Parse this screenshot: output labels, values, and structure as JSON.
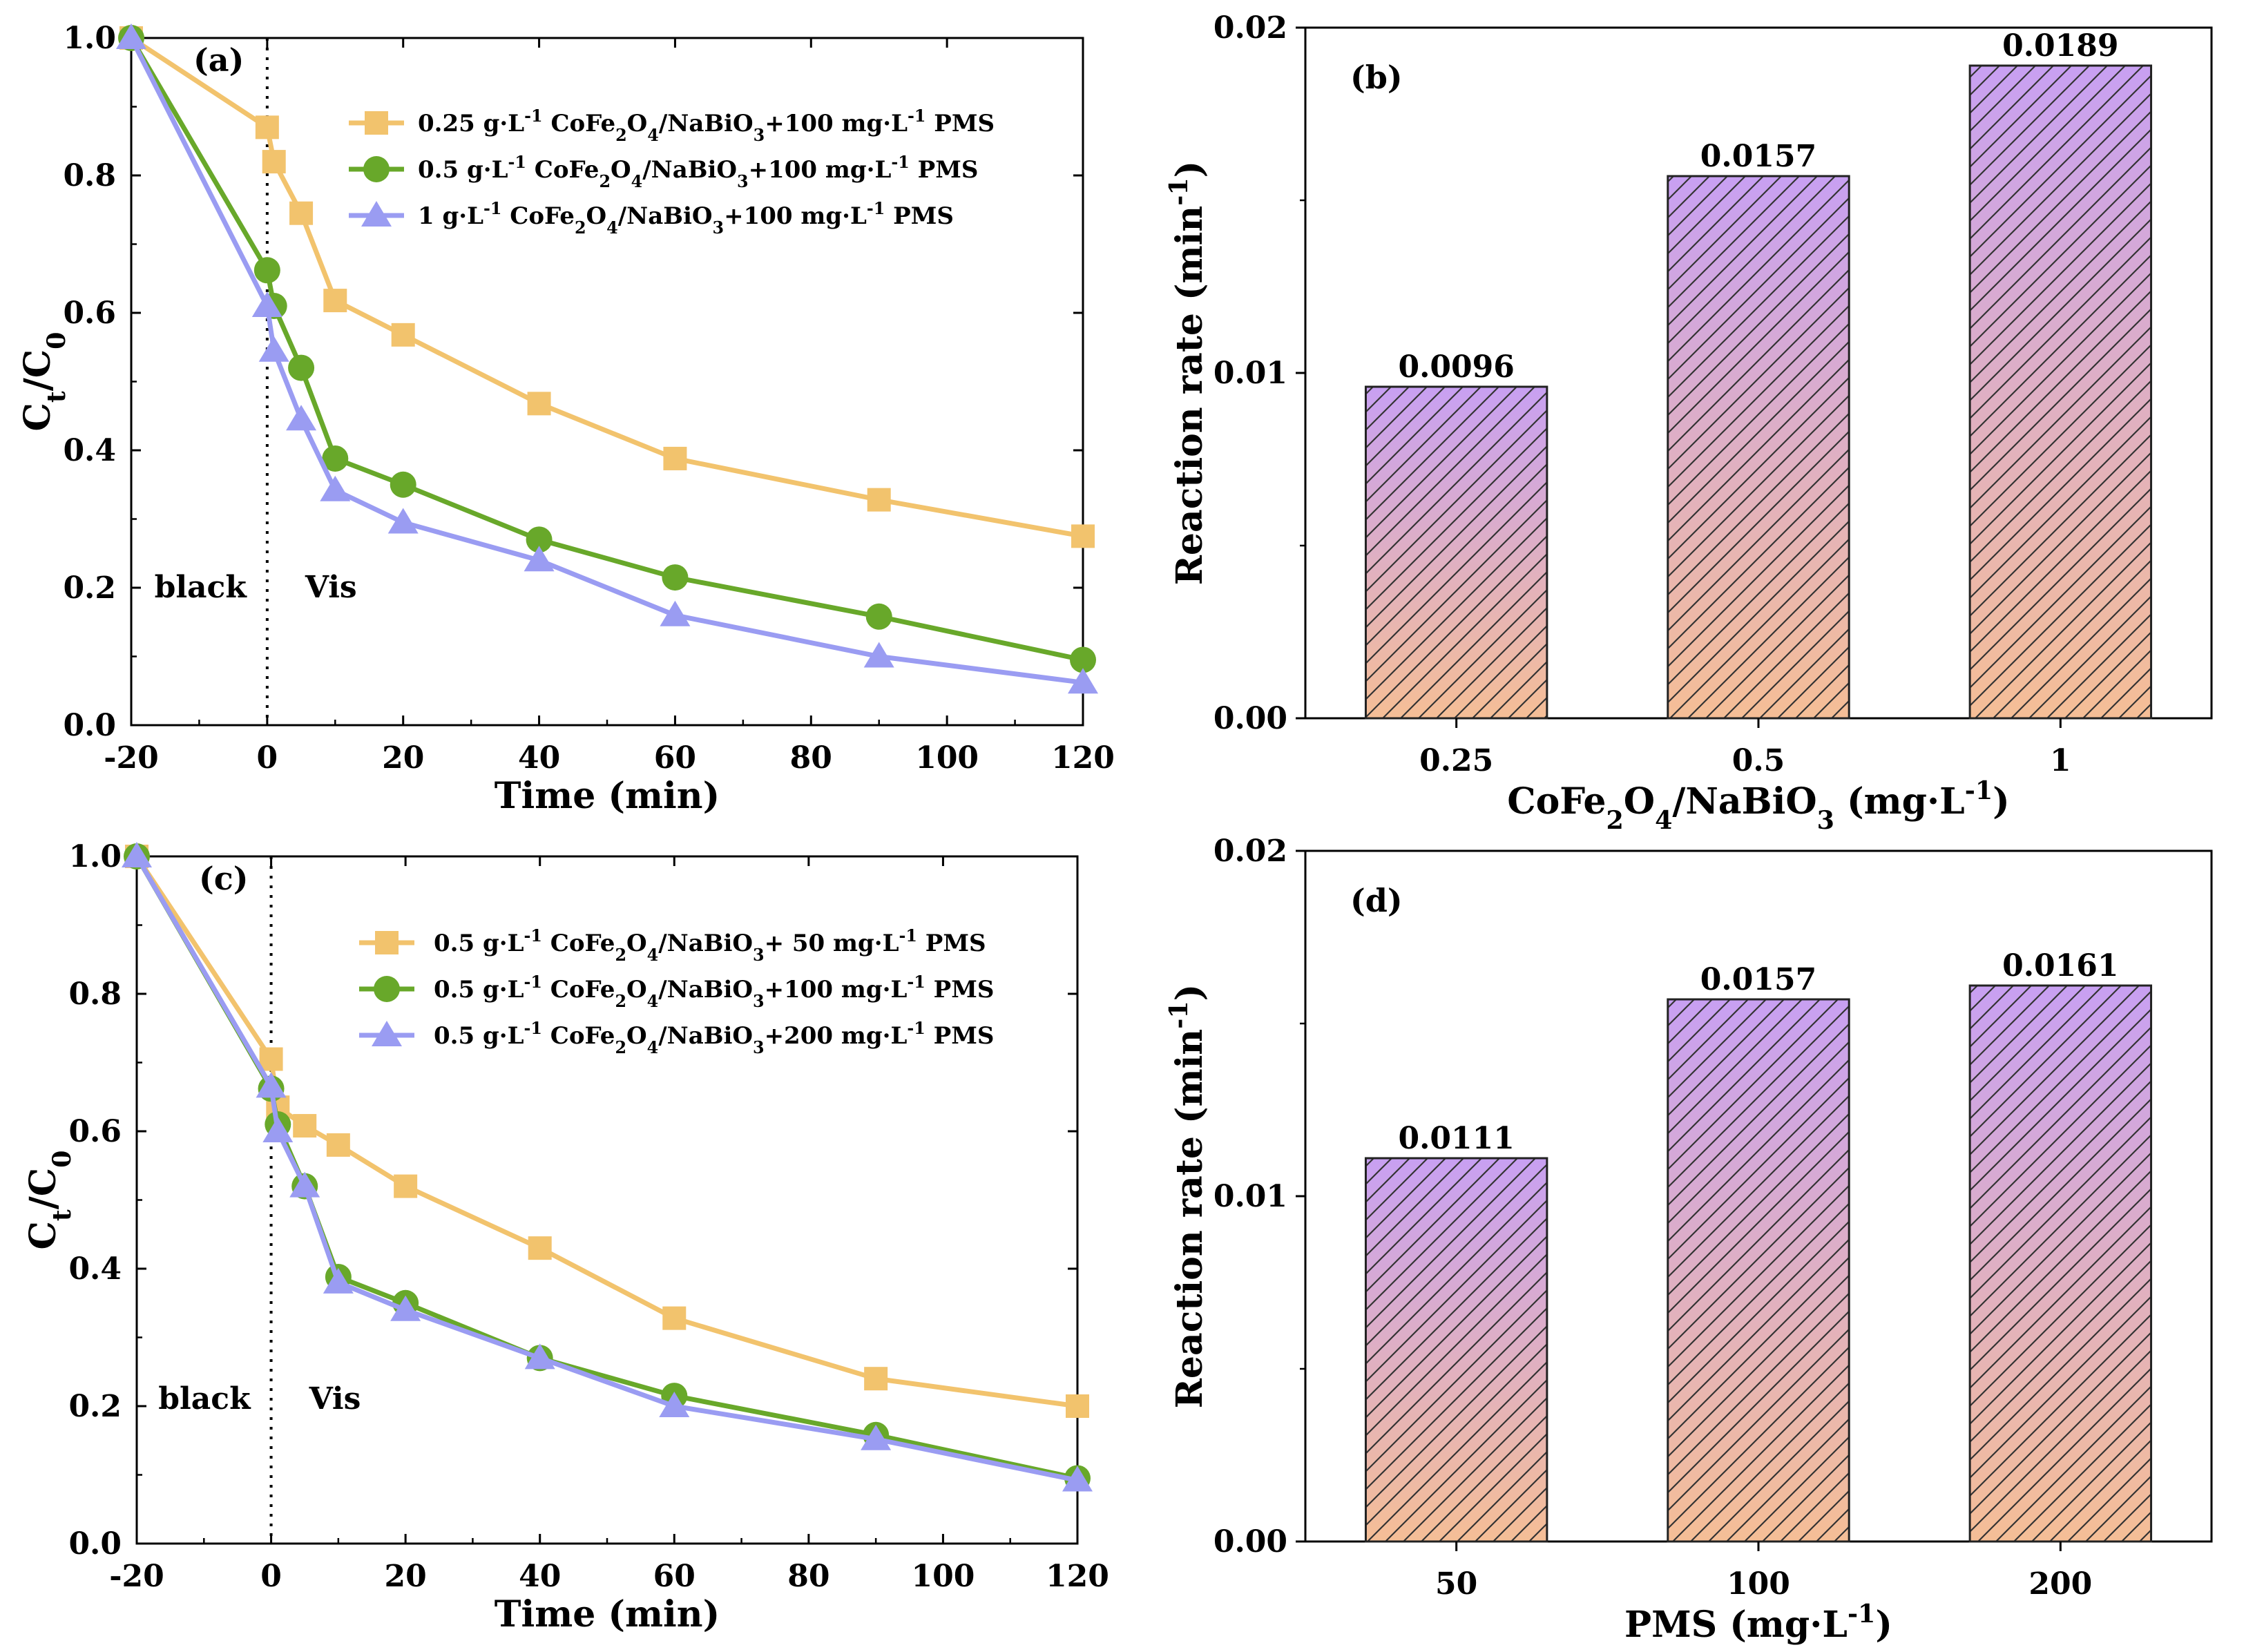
{
  "colors": {
    "series_1": "#F2C36D",
    "series_2": "#68A82A",
    "series_3": "#9A9CF2",
    "bar_top": "#C8A0F2",
    "bar_bottom": "#F5BE96",
    "bar_edge": "#222222"
  },
  "chart_data": [
    {
      "id": "a",
      "type": "line",
      "panel_label": "(a)",
      "xlabel": "Time (min)",
      "ylabel_main": "C",
      "ylabel_sub1": "t",
      "ylabel_mid": "/C",
      "ylabel_sub2": "0",
      "xlim": [
        -20,
        120
      ],
      "ylim": [
        0.0,
        1.0
      ],
      "xticks": [
        "-20",
        "0",
        "20",
        "40",
        "60",
        "80",
        "100",
        "120"
      ],
      "xtick_values": [
        -20,
        0,
        20,
        40,
        60,
        80,
        100,
        120
      ],
      "yticks": [
        "0.0",
        "0.2",
        "0.4",
        "0.6",
        "0.8",
        "1.0"
      ],
      "ytick_values": [
        0.0,
        0.2,
        0.4,
        0.6,
        0.8,
        1.0
      ],
      "divider_x": 0,
      "region_labels": [
        "black",
        "Vis"
      ],
      "legend_position": "top-right",
      "x": [
        -20,
        0,
        1,
        5,
        10,
        20,
        40,
        60,
        90,
        120
      ],
      "series": [
        {
          "name": "0.25 g·L⁻¹ CoFe₂O₄/NaBiO₃+100 mg·L⁻¹ PMS",
          "marker": "square",
          "color_key": "series_1",
          "values": [
            1.0,
            0.87,
            0.82,
            0.745,
            0.618,
            0.568,
            0.468,
            0.388,
            0.328,
            0.275
          ]
        },
        {
          "name": "0.5 g·L⁻¹ CoFe₂O₄/NaBiO₃+100 mg·L⁻¹ PMS",
          "marker": "circle",
          "color_key": "series_2",
          "values": [
            1.0,
            0.662,
            0.61,
            0.52,
            0.388,
            0.35,
            0.27,
            0.215,
            0.158,
            0.095
          ]
        },
        {
          "name": "1 g·L⁻¹ CoFe₂O₄/NaBiO₃+100 mg·L⁻¹ PMS",
          "marker": "triangle",
          "color_key": "series_3",
          "values": [
            1.0,
            0.61,
            0.545,
            0.445,
            0.342,
            0.295,
            0.24,
            0.16,
            0.1,
            0.062
          ]
        }
      ]
    },
    {
      "id": "b",
      "type": "bar",
      "panel_label": "(b)",
      "xlabel": "CoFe₂O₄/NaBiO₃ (mg·L⁻¹)",
      "ylabel": "Reaction rate (min⁻¹)",
      "ylim": [
        0.0,
        0.02
      ],
      "yticks": [
        "0.00",
        "0.01",
        "0.02"
      ],
      "ytick_values": [
        0.0,
        0.01,
        0.02
      ],
      "categories": [
        "0.25",
        "0.5",
        "1"
      ],
      "values": [
        0.0096,
        0.0157,
        0.0189
      ],
      "value_labels": [
        "0.0096",
        "0.0157",
        "0.0189"
      ]
    },
    {
      "id": "c",
      "type": "line",
      "panel_label": "(c)",
      "xlabel": "Time (min)",
      "ylabel_main": "C",
      "ylabel_sub1": "t",
      "ylabel_mid": "/C",
      "ylabel_sub2": "0",
      "xlim": [
        -20,
        120
      ],
      "ylim": [
        0.0,
        1.0
      ],
      "xticks": [
        "-20",
        "0",
        "20",
        "40",
        "60",
        "80",
        "100",
        "120"
      ],
      "xtick_values": [
        -20,
        0,
        20,
        40,
        60,
        80,
        100,
        120
      ],
      "yticks": [
        "0.0",
        "0.2",
        "0.4",
        "0.6",
        "0.8",
        "1.0"
      ],
      "ytick_values": [
        0.0,
        0.2,
        0.4,
        0.6,
        0.8,
        1.0
      ],
      "divider_x": 0,
      "region_labels": [
        "black",
        "Vis"
      ],
      "legend_position": "top-right",
      "x": [
        -20,
        0,
        1,
        5,
        10,
        20,
        40,
        60,
        90,
        120
      ],
      "series": [
        {
          "name": "0.5 g·L⁻¹ CoFe₂O₄/NaBiO₃+ 50 mg·L⁻¹ PMS",
          "marker": "square",
          "color_key": "series_1",
          "values": [
            1.0,
            0.705,
            0.635,
            0.608,
            0.58,
            0.52,
            0.43,
            0.328,
            0.24,
            0.2
          ]
        },
        {
          "name": "0.5 g·L⁻¹ CoFe₂O₄/NaBiO₃+100 mg·L⁻¹ PMS",
          "marker": "circle",
          "color_key": "series_2",
          "values": [
            1.0,
            0.662,
            0.61,
            0.52,
            0.388,
            0.35,
            0.27,
            0.215,
            0.158,
            0.095
          ]
        },
        {
          "name": "0.5 g·L⁻¹ CoFe₂O₄/NaBiO₃+200 mg·L⁻¹ PMS",
          "marker": "triangle",
          "color_key": "series_3",
          "values": [
            1.0,
            0.665,
            0.6,
            0.52,
            0.38,
            0.34,
            0.27,
            0.2,
            0.152,
            0.092
          ]
        }
      ]
    },
    {
      "id": "d",
      "type": "bar",
      "panel_label": "(d)",
      "xlabel": "PMS (mg·L⁻¹)",
      "ylabel": "Reaction rate (min⁻¹)",
      "ylim": [
        0.0,
        0.02
      ],
      "yticks": [
        "0.00",
        "0.01",
        "0.02"
      ],
      "ytick_values": [
        0.0,
        0.01,
        0.02
      ],
      "categories": [
        "50",
        "100",
        "200"
      ],
      "values": [
        0.0111,
        0.0157,
        0.0161
      ],
      "value_labels": [
        "0.0111",
        "0.0157",
        "0.0161"
      ]
    }
  ]
}
